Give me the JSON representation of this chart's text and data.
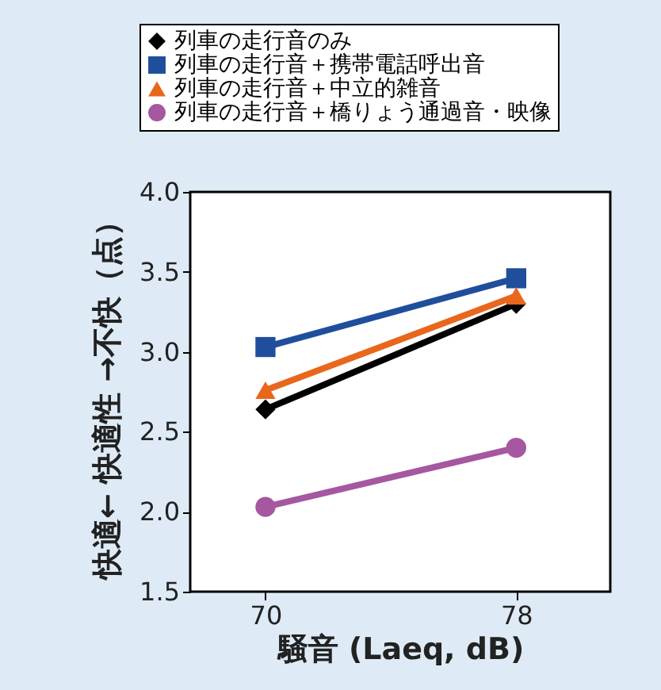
{
  "chart_data": {
    "type": "line",
    "xlabel": "騒音 (Laeq, dB)",
    "ylabel": "快適← 快適性 →不快（点）",
    "x": [
      70,
      78
    ],
    "xlim": [
      67.6,
      81
    ],
    "xticks": [
      70,
      78
    ],
    "ylim": [
      1.5,
      4.0
    ],
    "yticks": [
      1.5,
      {
        "value": 2,
        "label": "2.0"
      },
      2.5,
      {
        "value": 3,
        "label": "3.0"
      },
      3.5,
      {
        "value": 4,
        "label": "4.0"
      }
    ],
    "grid": false,
    "legend": "top",
    "line_style": "solid",
    "series": [
      {
        "name": "列車の走行音のみ",
        "color": "#000000",
        "marker": "diamond",
        "values": [
          2.64,
          3.3
        ]
      },
      {
        "name": "列車の走行音＋携帯電話呼出音",
        "color": "#1f4e9c",
        "marker": "square",
        "values": [
          3.03,
          3.46
        ]
      },
      {
        "name": "列車の走行音＋中立的雑音",
        "color": "#e8671c",
        "marker": "triangle",
        "values": [
          2.76,
          3.35
        ]
      },
      {
        "name": "列車の走行音＋橋りょう通過音・映像",
        "color": "#a5579f",
        "marker": "circle",
        "values": [
          2.03,
          2.4
        ]
      }
    ]
  }
}
